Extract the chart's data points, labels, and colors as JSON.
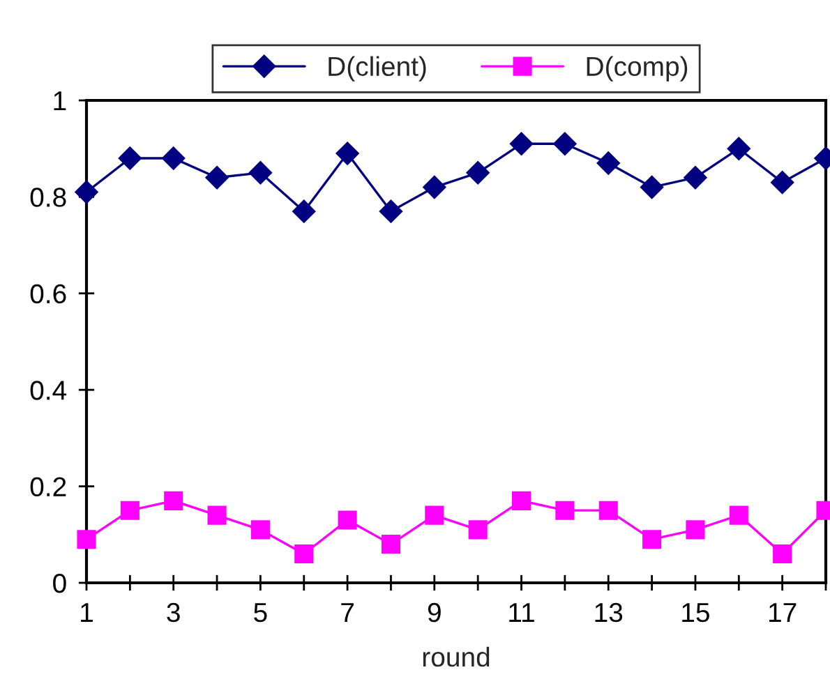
{
  "chart_data": {
    "type": "line",
    "xlabel": "round",
    "x": [
      1,
      2,
      3,
      4,
      5,
      6,
      7,
      8,
      9,
      10,
      11,
      12,
      13,
      14,
      15,
      16,
      17,
      18
    ],
    "series": [
      {
        "name": "D(client)",
        "color": "#000080",
        "marker": "diamond",
        "values": [
          0.81,
          0.88,
          0.88,
          0.84,
          0.85,
          0.77,
          0.89,
          0.77,
          0.82,
          0.85,
          0.91,
          0.91,
          0.87,
          0.82,
          0.84,
          0.9,
          0.83,
          0.88
        ]
      },
      {
        "name": "D(comp)",
        "color": "#ff00ff",
        "marker": "square",
        "values": [
          0.09,
          0.15,
          0.17,
          0.14,
          0.11,
          0.06,
          0.13,
          0.08,
          0.14,
          0.11,
          0.17,
          0.15,
          0.15,
          0.09,
          0.11,
          0.14,
          0.06,
          0.15
        ]
      }
    ],
    "xlim": [
      1,
      18
    ],
    "xticks": [
      1,
      {
        "value": 2,
        "label": null
      },
      3,
      {
        "value": 4,
        "label": null
      },
      5,
      {
        "value": 6,
        "label": null
      },
      7,
      {
        "value": 8,
        "label": null
      },
      9,
      {
        "value": 10,
        "label": null
      },
      11,
      {
        "value": 12,
        "label": null
      },
      13,
      {
        "value": 14,
        "label": null
      },
      15,
      {
        "value": 16,
        "label": null
      },
      17,
      {
        "value": 18,
        "label": null
      }
    ],
    "ylim": [
      0,
      1
    ],
    "yticks": [
      0,
      0.2,
      0.4,
      0.6,
      0.8,
      1
    ],
    "grid": false,
    "legend": "top",
    "line_style": "solid"
  }
}
